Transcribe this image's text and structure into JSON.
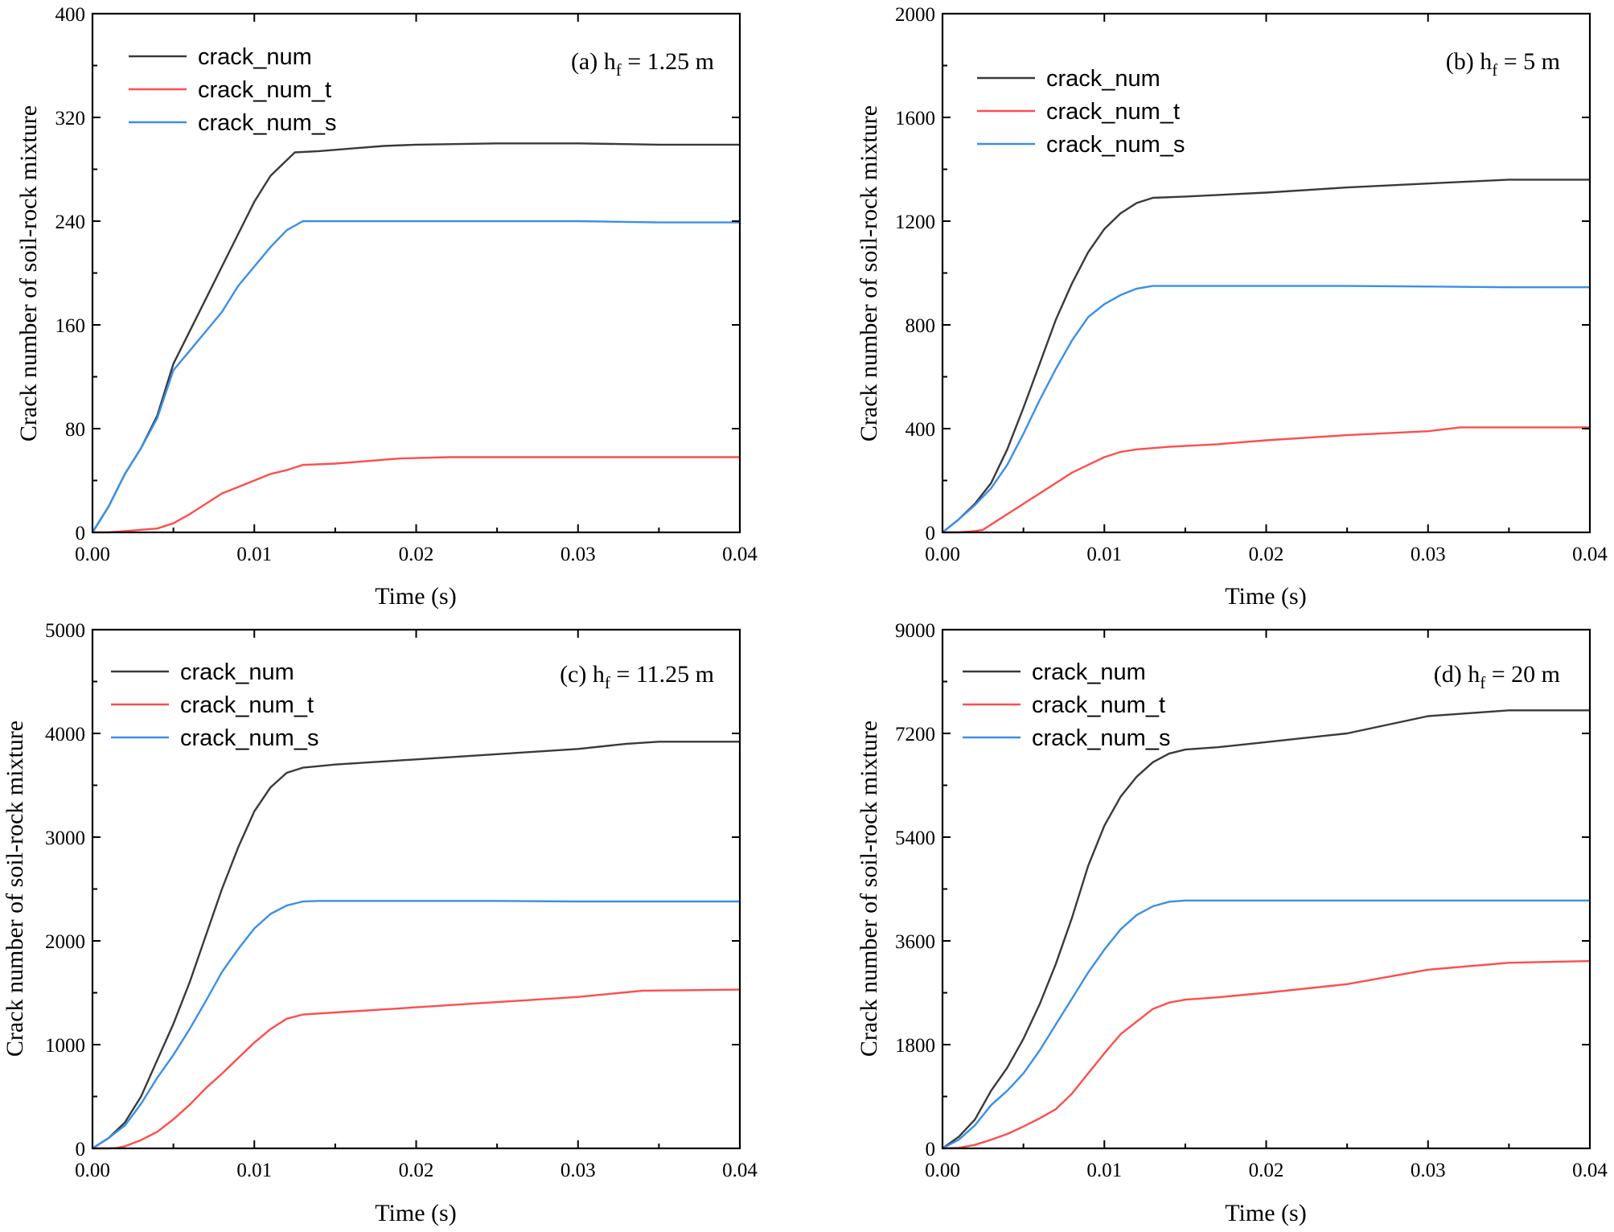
{
  "figure": {
    "label": "Crack number of soil-rock mixture vs time for four drop heights"
  },
  "chart_data": [
    {
      "type": "line",
      "panel": "a",
      "annotation_prefix": "(a) h",
      "annotation_sub": "f",
      "annotation_suffix": " = 1.25 m",
      "xlabel": "Time (s)",
      "ylabel": "Crack number of soil-rock mixture",
      "xlim": [
        0,
        0.04
      ],
      "ylim": [
        0,
        400
      ],
      "xticks": [
        0,
        0.01,
        0.02,
        0.03,
        0.04
      ],
      "xtick_labels": [
        "0.00",
        "0.01",
        "0.02",
        "0.03",
        "0.04"
      ],
      "yticks": [
        0,
        80,
        160,
        240,
        320,
        400
      ],
      "ytick_labels": [
        "0",
        "80",
        "160",
        "240",
        "320",
        "400"
      ],
      "legend_position": "top-left",
      "series": [
        {
          "name": "crack_num",
          "color": "#3a3a3a",
          "x": [
            0,
            0.001,
            0.002,
            0.003,
            0.004,
            0.005,
            0.006,
            0.007,
            0.008,
            0.009,
            0.01,
            0.011,
            0.0125,
            0.014,
            0.016,
            0.018,
            0.02,
            0.025,
            0.03,
            0.035,
            0.04
          ],
          "y": [
            0,
            20,
            45,
            65,
            90,
            130,
            155,
            180,
            205,
            230,
            255,
            275,
            293,
            294,
            296,
            298,
            299,
            300,
            300,
            299,
            299
          ]
        },
        {
          "name": "crack_num_t",
          "color": "#ff4d4d",
          "x": [
            0,
            0.001,
            0.002,
            0.003,
            0.004,
            0.005,
            0.006,
            0.007,
            0.008,
            0.009,
            0.01,
            0.011,
            0.012,
            0.013,
            0.015,
            0.017,
            0.019,
            0.022,
            0.025,
            0.03,
            0.035,
            0.04
          ],
          "y": [
            0,
            0,
            1,
            2,
            3,
            7,
            14,
            22,
            30,
            35,
            40,
            45,
            48,
            52,
            53,
            55,
            57,
            58,
            58,
            58,
            58,
            58
          ]
        },
        {
          "name": "crack_num_s",
          "color": "#3b8fe6",
          "x": [
            0,
            0.001,
            0.002,
            0.003,
            0.004,
            0.005,
            0.006,
            0.007,
            0.008,
            0.009,
            0.01,
            0.011,
            0.012,
            0.013,
            0.016,
            0.02,
            0.025,
            0.03,
            0.035,
            0.04
          ],
          "y": [
            0,
            20,
            45,
            65,
            88,
            125,
            140,
            155,
            170,
            190,
            205,
            220,
            233,
            240,
            240,
            240,
            240,
            240,
            239,
            239
          ]
        }
      ]
    },
    {
      "type": "line",
      "panel": "b",
      "annotation_prefix": "(b) h",
      "annotation_sub": "f",
      "annotation_suffix": " = 5 m",
      "xlabel": "Time (s)",
      "ylabel": "Crack number of soil-rock mixture",
      "xlim": [
        0,
        0.04
      ],
      "ylim": [
        0,
        2000
      ],
      "xticks": [
        0,
        0.01,
        0.02,
        0.03,
        0.04
      ],
      "xtick_labels": [
        "0.00",
        "0.01",
        "0.02",
        "0.03",
        "0.04"
      ],
      "yticks": [
        0,
        400,
        800,
        1200,
        1600,
        2000
      ],
      "ytick_labels": [
        "0",
        "400",
        "800",
        "1200",
        "1600",
        "2000"
      ],
      "legend_position": "top-left",
      "series": [
        {
          "name": "crack_num",
          "color": "#3a3a3a",
          "x": [
            0,
            0.001,
            0.002,
            0.003,
            0.004,
            0.005,
            0.006,
            0.007,
            0.008,
            0.009,
            0.01,
            0.011,
            0.012,
            0.013,
            0.015,
            0.02,
            0.025,
            0.03,
            0.035,
            0.04
          ],
          "y": [
            0,
            50,
            110,
            190,
            320,
            480,
            650,
            820,
            960,
            1080,
            1170,
            1230,
            1270,
            1290,
            1295,
            1310,
            1330,
            1345,
            1360,
            1360
          ]
        },
        {
          "name": "crack_num_t",
          "color": "#ff4d4d",
          "x": [
            0,
            0.001,
            0.002,
            0.0025,
            0.003,
            0.004,
            0.005,
            0.006,
            0.007,
            0.008,
            0.009,
            0.01,
            0.011,
            0.012,
            0.014,
            0.017,
            0.02,
            0.025,
            0.03,
            0.032,
            0.035,
            0.04
          ],
          "y": [
            0,
            0,
            5,
            10,
            30,
            70,
            110,
            150,
            190,
            230,
            260,
            290,
            310,
            320,
            330,
            340,
            355,
            375,
            390,
            405,
            405,
            405
          ]
        },
        {
          "name": "crack_num_s",
          "color": "#3b8fe6",
          "x": [
            0,
            0.001,
            0.002,
            0.003,
            0.004,
            0.005,
            0.006,
            0.007,
            0.008,
            0.009,
            0.01,
            0.011,
            0.012,
            0.013,
            0.015,
            0.02,
            0.025,
            0.03,
            0.035,
            0.04
          ],
          "y": [
            0,
            50,
            105,
            170,
            260,
            380,
            510,
            630,
            740,
            830,
            880,
            915,
            940,
            950,
            950,
            950,
            950,
            948,
            945,
            945
          ]
        }
      ]
    },
    {
      "type": "line",
      "panel": "c",
      "annotation_prefix": "(c) h",
      "annotation_sub": "f",
      "annotation_suffix": " = 11.25 m",
      "xlabel": "Time (s)",
      "ylabel": "Crack number of soil-rock mixture",
      "xlim": [
        0,
        0.04
      ],
      "ylim": [
        0,
        5000
      ],
      "xticks": [
        0,
        0.01,
        0.02,
        0.03,
        0.04
      ],
      "xtick_labels": [
        "0.00",
        "0.01",
        "0.02",
        "0.03",
        "0.04"
      ],
      "yticks": [
        0,
        1000,
        2000,
        3000,
        4000,
        5000
      ],
      "ytick_labels": [
        "0",
        "1000",
        "2000",
        "3000",
        "4000",
        "5000"
      ],
      "legend_position": "top-left",
      "series": [
        {
          "name": "crack_num",
          "color": "#3a3a3a",
          "x": [
            0,
            0.001,
            0.002,
            0.003,
            0.004,
            0.005,
            0.006,
            0.007,
            0.008,
            0.009,
            0.01,
            0.011,
            0.012,
            0.013,
            0.015,
            0.02,
            0.025,
            0.03,
            0.033,
            0.035,
            0.04
          ],
          "y": [
            0,
            100,
            250,
            500,
            850,
            1200,
            1600,
            2050,
            2500,
            2900,
            3250,
            3480,
            3620,
            3670,
            3700,
            3750,
            3800,
            3850,
            3900,
            3920,
            3920
          ]
        },
        {
          "name": "crack_num_t",
          "color": "#ff4d4d",
          "x": [
            0,
            0.001,
            0.0015,
            0.002,
            0.003,
            0.004,
            0.005,
            0.006,
            0.007,
            0.008,
            0.009,
            0.01,
            0.011,
            0.012,
            0.013,
            0.015,
            0.02,
            0.025,
            0.03,
            0.034,
            0.04
          ],
          "y": [
            0,
            0,
            5,
            20,
            80,
            160,
            280,
            420,
            580,
            720,
            870,
            1020,
            1150,
            1250,
            1290,
            1310,
            1360,
            1410,
            1460,
            1520,
            1530
          ]
        },
        {
          "name": "crack_num_s",
          "color": "#3b8fe6",
          "x": [
            0,
            0.001,
            0.002,
            0.003,
            0.004,
            0.005,
            0.006,
            0.007,
            0.008,
            0.009,
            0.01,
            0.011,
            0.012,
            0.013,
            0.014,
            0.02,
            0.025,
            0.03,
            0.035,
            0.04
          ],
          "y": [
            0,
            100,
            220,
            430,
            680,
            900,
            1150,
            1420,
            1700,
            1920,
            2120,
            2260,
            2340,
            2380,
            2385,
            2385,
            2385,
            2380,
            2380,
            2380
          ]
        }
      ]
    },
    {
      "type": "line",
      "panel": "d",
      "annotation_prefix": "(d) h",
      "annotation_sub": "f",
      "annotation_suffix": " = 20 m",
      "xlabel": "Time (s)",
      "ylabel": "Crack number of soil-rock mixture",
      "xlim": [
        0,
        0.04
      ],
      "ylim": [
        0,
        9000
      ],
      "xticks": [
        0,
        0.01,
        0.02,
        0.03,
        0.04
      ],
      "xtick_labels": [
        "0.00",
        "0.01",
        "0.02",
        "0.03",
        "0.04"
      ],
      "yticks": [
        0,
        1800,
        3600,
        5400,
        7200,
        9000
      ],
      "ytick_labels": [
        "0",
        "1800",
        "3600",
        "5400",
        "7200",
        "9000"
      ],
      "legend_position": "top-left",
      "series": [
        {
          "name": "crack_num",
          "color": "#3a3a3a",
          "x": [
            0,
            0.001,
            0.002,
            0.003,
            0.004,
            0.005,
            0.006,
            0.007,
            0.008,
            0.009,
            0.01,
            0.011,
            0.012,
            0.013,
            0.014,
            0.015,
            0.017,
            0.02,
            0.025,
            0.03,
            0.035,
            0.04
          ],
          "y": [
            0,
            200,
            500,
            1000,
            1400,
            1900,
            2500,
            3200,
            4000,
            4900,
            5600,
            6100,
            6450,
            6700,
            6850,
            6920,
            6960,
            7050,
            7200,
            7500,
            7600,
            7600
          ]
        },
        {
          "name": "crack_num_t",
          "color": "#ff4d4d",
          "x": [
            0,
            0.001,
            0.002,
            0.003,
            0.004,
            0.005,
            0.006,
            0.007,
            0.008,
            0.009,
            0.01,
            0.011,
            0.012,
            0.013,
            0.014,
            0.015,
            0.017,
            0.02,
            0.025,
            0.03,
            0.035,
            0.04
          ],
          "y": [
            0,
            10,
            60,
            150,
            250,
            380,
            520,
            680,
            950,
            1300,
            1650,
            1980,
            2200,
            2420,
            2530,
            2580,
            2620,
            2700,
            2850,
            3100,
            3220,
            3250
          ]
        },
        {
          "name": "crack_num_s",
          "color": "#3b8fe6",
          "x": [
            0,
            0.001,
            0.002,
            0.003,
            0.004,
            0.005,
            0.006,
            0.007,
            0.008,
            0.009,
            0.01,
            0.011,
            0.012,
            0.013,
            0.014,
            0.015,
            0.02,
            0.025,
            0.03,
            0.035,
            0.04
          ],
          "y": [
            0,
            150,
            400,
            750,
            1000,
            1300,
            1700,
            2150,
            2600,
            3050,
            3450,
            3800,
            4050,
            4200,
            4280,
            4300,
            4300,
            4300,
            4300,
            4300,
            4300
          ]
        }
      ]
    }
  ]
}
